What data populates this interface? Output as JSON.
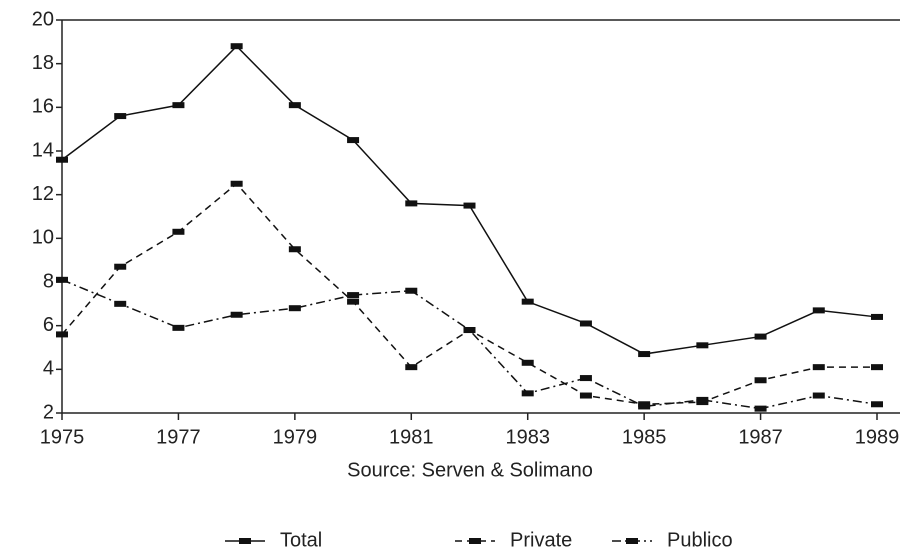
{
  "chart_data": {
    "type": "line",
    "x": [
      1975,
      1976,
      1977,
      1978,
      1979,
      1980,
      1981,
      1982,
      1983,
      1984,
      1985,
      1986,
      1987,
      1988,
      1989
    ],
    "series": [
      {
        "name": "Total",
        "color": "#111111",
        "dash": "solid",
        "values": [
          13.6,
          15.6,
          16.1,
          18.8,
          16.1,
          14.5,
          11.6,
          11.5,
          7.1,
          6.1,
          4.7,
          5.1,
          5.5,
          6.7,
          6.4
        ]
      },
      {
        "name": "Private",
        "color": "#111111",
        "dash": "dashed",
        "values": [
          5.6,
          8.7,
          10.3,
          12.5,
          9.5,
          7.1,
          4.1,
          5.8,
          4.3,
          2.8,
          2.4,
          2.5,
          3.5,
          4.1,
          4.1
        ]
      },
      {
        "name": "Publico",
        "color": "#111111",
        "dash": "dashdot",
        "values": [
          8.1,
          7.0,
          5.9,
          6.5,
          6.8,
          7.4,
          7.6,
          5.8,
          2.9,
          3.6,
          2.3,
          2.6,
          2.2,
          2.8,
          2.4
        ]
      }
    ],
    "xlabel": "Source: Serven & Solimano",
    "xlim": [
      1975,
      1989
    ],
    "xticks": [
      1975,
      1977,
      1979,
      1981,
      1983,
      1985,
      1987,
      1989
    ],
    "ylim": [
      2,
      20
    ],
    "yticks": [
      2,
      4,
      6,
      8,
      10,
      12,
      14,
      16,
      18,
      20
    ],
    "legend": "bottom"
  }
}
